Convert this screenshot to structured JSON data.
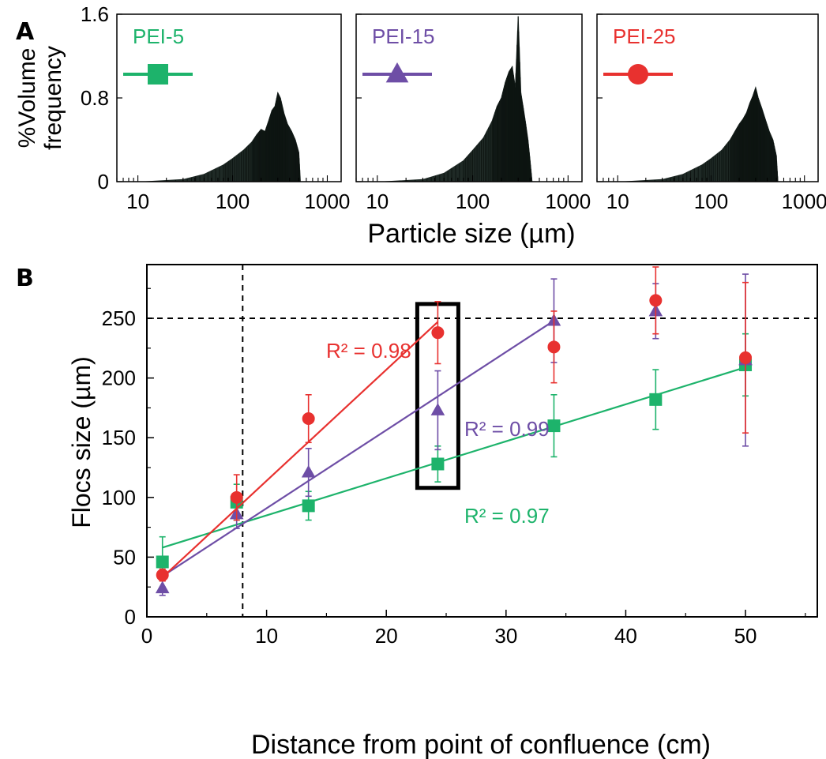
{
  "figure": {
    "panel_a_label": "A",
    "panel_b_label": "B"
  },
  "colors": {
    "PEI-5": "#1db36b",
    "PEI-15": "#6e4ea6",
    "PEI-25": "#e8312f",
    "histogram": "#1f2a26"
  },
  "chart_data": [
    {
      "panel": "A",
      "type": "area",
      "x_scale": "log",
      "ylabel_lines": [
        "%Volume",
        "frequency"
      ],
      "xlabel": "Particle size (µm)",
      "ylim": [
        0,
        1.6
      ],
      "y_ticks": [
        "0",
        "0.8",
        "1.6"
      ],
      "x_ticks": [
        "10",
        "100",
        "1000"
      ],
      "xlim": [
        6,
        1400
      ],
      "subplots": [
        {
          "name": "PEI-5",
          "marker": "square",
          "x": [
            12,
            30,
            50,
            80,
            100,
            130,
            160,
            180,
            200,
            220,
            240,
            260,
            280,
            300,
            320,
            350,
            380,
            420,
            460,
            500,
            520
          ],
          "values": [
            0.0,
            0.02,
            0.07,
            0.16,
            0.22,
            0.3,
            0.38,
            0.45,
            0.5,
            0.48,
            0.58,
            0.68,
            0.72,
            0.85,
            0.8,
            0.65,
            0.55,
            0.48,
            0.4,
            0.28,
            0.0
          ]
        },
        {
          "name": "PEI-15",
          "marker": "triangle",
          "x": [
            12,
            30,
            50,
            80,
            100,
            130,
            160,
            180,
            200,
            220,
            240,
            260,
            280,
            300,
            320,
            340,
            360,
            380,
            400,
            420
          ],
          "values": [
            0.0,
            0.02,
            0.08,
            0.2,
            0.3,
            0.42,
            0.58,
            0.72,
            0.8,
            0.95,
            1.05,
            1.1,
            0.9,
            1.58,
            0.85,
            0.7,
            0.55,
            0.4,
            0.2,
            0.0
          ]
        },
        {
          "name": "PEI-25",
          "marker": "circle",
          "x": [
            12,
            30,
            50,
            80,
            100,
            130,
            160,
            180,
            200,
            220,
            240,
            260,
            280,
            300,
            320,
            350,
            380,
            420,
            460,
            500,
            520
          ],
          "values": [
            0.0,
            0.02,
            0.07,
            0.16,
            0.22,
            0.3,
            0.4,
            0.48,
            0.55,
            0.6,
            0.66,
            0.75,
            0.82,
            0.9,
            0.8,
            0.7,
            0.6,
            0.48,
            0.4,
            0.25,
            0.0
          ]
        }
      ]
    },
    {
      "panel": "B",
      "type": "scatter",
      "xlabel": "Distance from point of confluence (cm)",
      "ylabel": "Flocs size (µm)",
      "xlim": [
        0,
        56
      ],
      "ylim": [
        0,
        295
      ],
      "x_ticks": [
        0,
        10,
        20,
        30,
        40,
        50
      ],
      "y_ticks": [
        0,
        50,
        100,
        150,
        200,
        250
      ],
      "reference_lines": {
        "x": 8,
        "y": 250
      },
      "highlight_x": 24.3,
      "series": [
        {
          "name": "PEI-5",
          "marker": "square",
          "x": [
            1.3,
            7.5,
            13.5,
            24.3,
            34.0,
            42.5,
            50.0
          ],
          "values": [
            46,
            96,
            93,
            128,
            160,
            182,
            211
          ],
          "err": [
            21,
            15,
            12,
            15,
            26,
            25,
            26
          ],
          "fit": {
            "x": [
              1.3,
              50.0
            ],
            "y": [
              58,
              209
            ],
            "r2_label": "R² = 0.97"
          }
        },
        {
          "name": "PEI-15",
          "marker": "triangle",
          "x": [
            1.3,
            7.5,
            13.5,
            24.3,
            34.0,
            42.5,
            50.0
          ],
          "values": [
            24,
            86,
            121,
            173,
            248,
            256,
            215
          ],
          "err": [
            6,
            12,
            20,
            33,
            35,
            23,
            72
          ],
          "fit": {
            "x": [
              1.3,
              34.0
            ],
            "y": [
              34,
              248
            ],
            "r2_label": "R² = 0.99"
          }
        },
        {
          "name": "PEI-25",
          "marker": "circle",
          "x": [
            1.3,
            7.5,
            13.5,
            24.3,
            34.0,
            42.5,
            50.0
          ],
          "values": [
            35,
            100,
            166,
            238,
            226,
            265,
            217
          ],
          "err": [
            5,
            19,
            20,
            26,
            30,
            28,
            63
          ],
          "fit": {
            "x": [
              1.3,
              24.3
            ],
            "y": [
              33,
              247
            ],
            "r2_label": "R² = 0.98"
          }
        }
      ]
    }
  ]
}
